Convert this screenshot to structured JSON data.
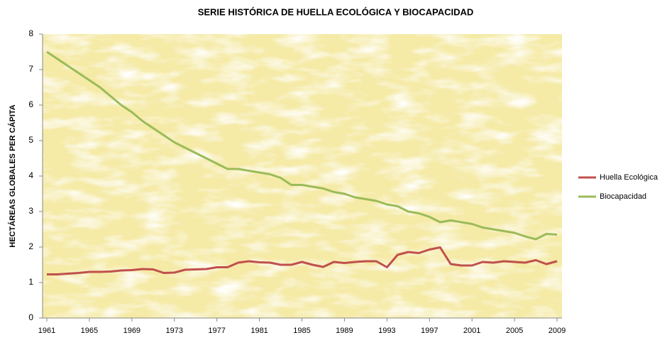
{
  "chart_data": {
    "type": "line",
    "title": "SERIE HISTÓRICA DE HUELLA ECOLÓGICA Y BIOCAPACIDAD",
    "y_label": "HECTÁREAS GLOBALES PER CÁPITA",
    "x": [
      1961,
      1962,
      1963,
      1964,
      1965,
      1966,
      1967,
      1968,
      1969,
      1970,
      1971,
      1972,
      1973,
      1974,
      1975,
      1976,
      1977,
      1978,
      1979,
      1980,
      1981,
      1982,
      1983,
      1984,
      1985,
      1986,
      1987,
      1988,
      1989,
      1990,
      1991,
      1992,
      1993,
      1994,
      1995,
      1996,
      1997,
      1998,
      1999,
      2000,
      2001,
      2002,
      2003,
      2004,
      2005,
      2006,
      2007,
      2008,
      2009
    ],
    "series": [
      {
        "name": "Huella Ecológica",
        "color": "#c0504d",
        "values": [
          1.23,
          1.23,
          1.25,
          1.27,
          1.3,
          1.3,
          1.31,
          1.34,
          1.35,
          1.38,
          1.37,
          1.27,
          1.28,
          1.36,
          1.37,
          1.38,
          1.43,
          1.43,
          1.56,
          1.6,
          1.57,
          1.56,
          1.5,
          1.5,
          1.58,
          1.5,
          1.44,
          1.58,
          1.55,
          1.58,
          1.6,
          1.6,
          1.43,
          1.78,
          1.86,
          1.83,
          1.93,
          1.99,
          1.52,
          1.48,
          1.48,
          1.58,
          1.56,
          1.6,
          1.58,
          1.56,
          1.63,
          1.52,
          1.6
        ]
      },
      {
        "name": "Biocapacidad",
        "color": "#9bbb59",
        "values": [
          7.5,
          7.3,
          7.1,
          6.9,
          6.7,
          6.5,
          6.25,
          6.0,
          5.8,
          5.55,
          5.35,
          5.15,
          4.95,
          4.8,
          4.65,
          4.5,
          4.35,
          4.2,
          4.2,
          4.15,
          4.1,
          4.05,
          3.95,
          3.75,
          3.75,
          3.7,
          3.65,
          3.55,
          3.5,
          3.4,
          3.35,
          3.3,
          3.2,
          3.15,
          3.0,
          2.95,
          2.85,
          2.7,
          2.75,
          2.7,
          2.65,
          2.55,
          2.5,
          2.45,
          2.4,
          2.3,
          2.22,
          2.37,
          2.35
        ]
      }
    ],
    "xlim": [
      1961,
      2009
    ],
    "xticks": [
      1961,
      1965,
      1969,
      1973,
      1977,
      1981,
      1985,
      1989,
      1993,
      1997,
      2001,
      2005,
      2009
    ],
    "ylim": [
      0,
      8
    ],
    "yticks": [
      0,
      1,
      2,
      3,
      4,
      5,
      6,
      7,
      8
    ],
    "legend": "right"
  }
}
